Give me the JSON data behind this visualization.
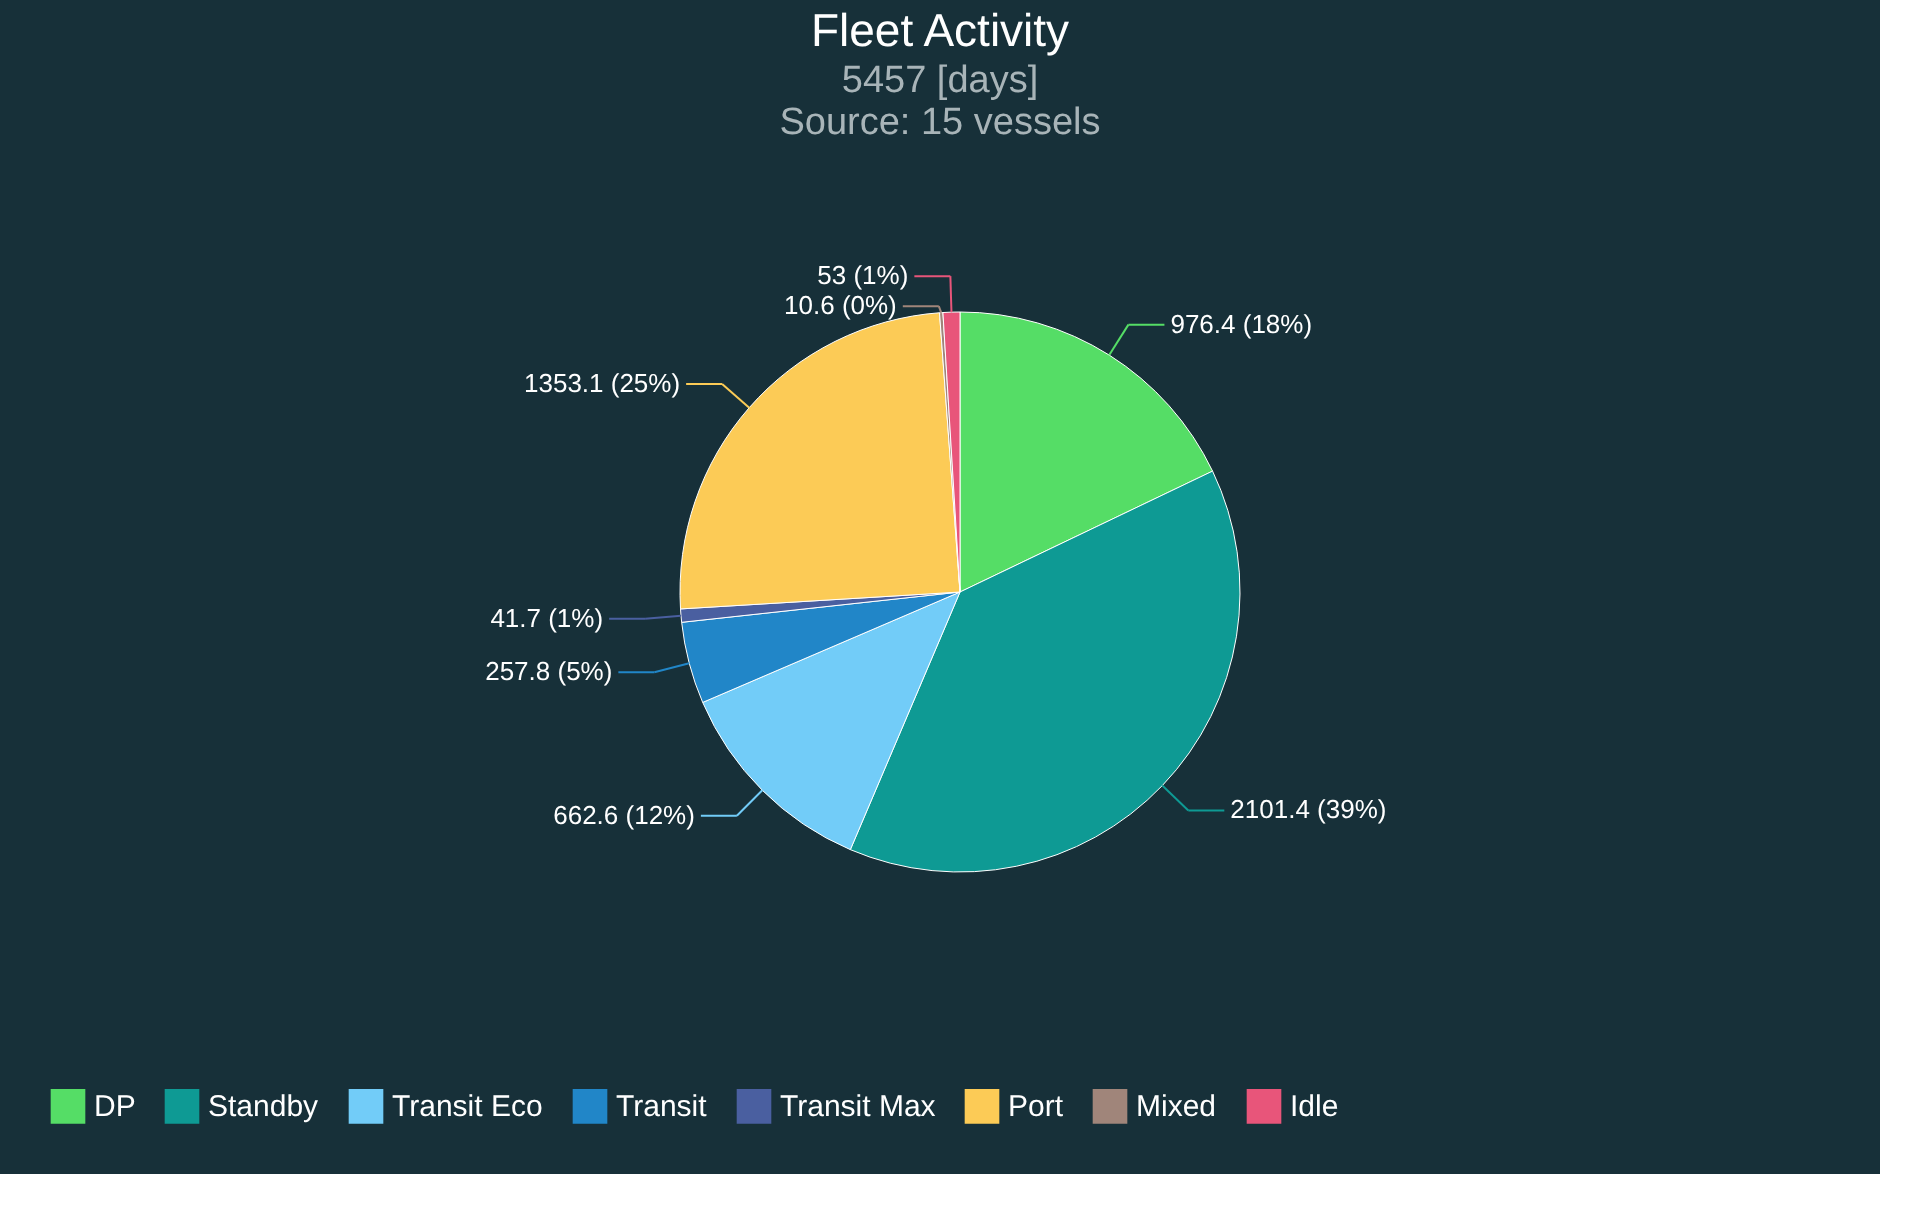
{
  "chart_data": {
    "type": "pie",
    "title": "Fleet Activity",
    "subtitle": "5457 [days]\nSource: 15 vessels",
    "categories": [
      "DP",
      "Standby",
      "Transit Eco",
      "Transit",
      "Transit Max",
      "Port",
      "Mixed",
      "Idle"
    ],
    "values": [
      976.4,
      2101.4,
      662.6,
      257.8,
      41.7,
      1353.1,
      10.6,
      53
    ],
    "value_labels": [
      "976.4 (18%)",
      "2101.4 (39%)",
      "662.6 (12%)",
      "257.8 (5%)",
      "41.7 (1%)",
      "1353.1 (25%)",
      "10.6 (0%)",
      "53 (1%)"
    ],
    "colors": [
      "#55dd66",
      "#0e9a94",
      "#72ccf8",
      "#2186c8",
      "#4a5fa0",
      "#fccb56",
      "#a0857a",
      "#e8557a"
    ],
    "legend": "bottom"
  }
}
